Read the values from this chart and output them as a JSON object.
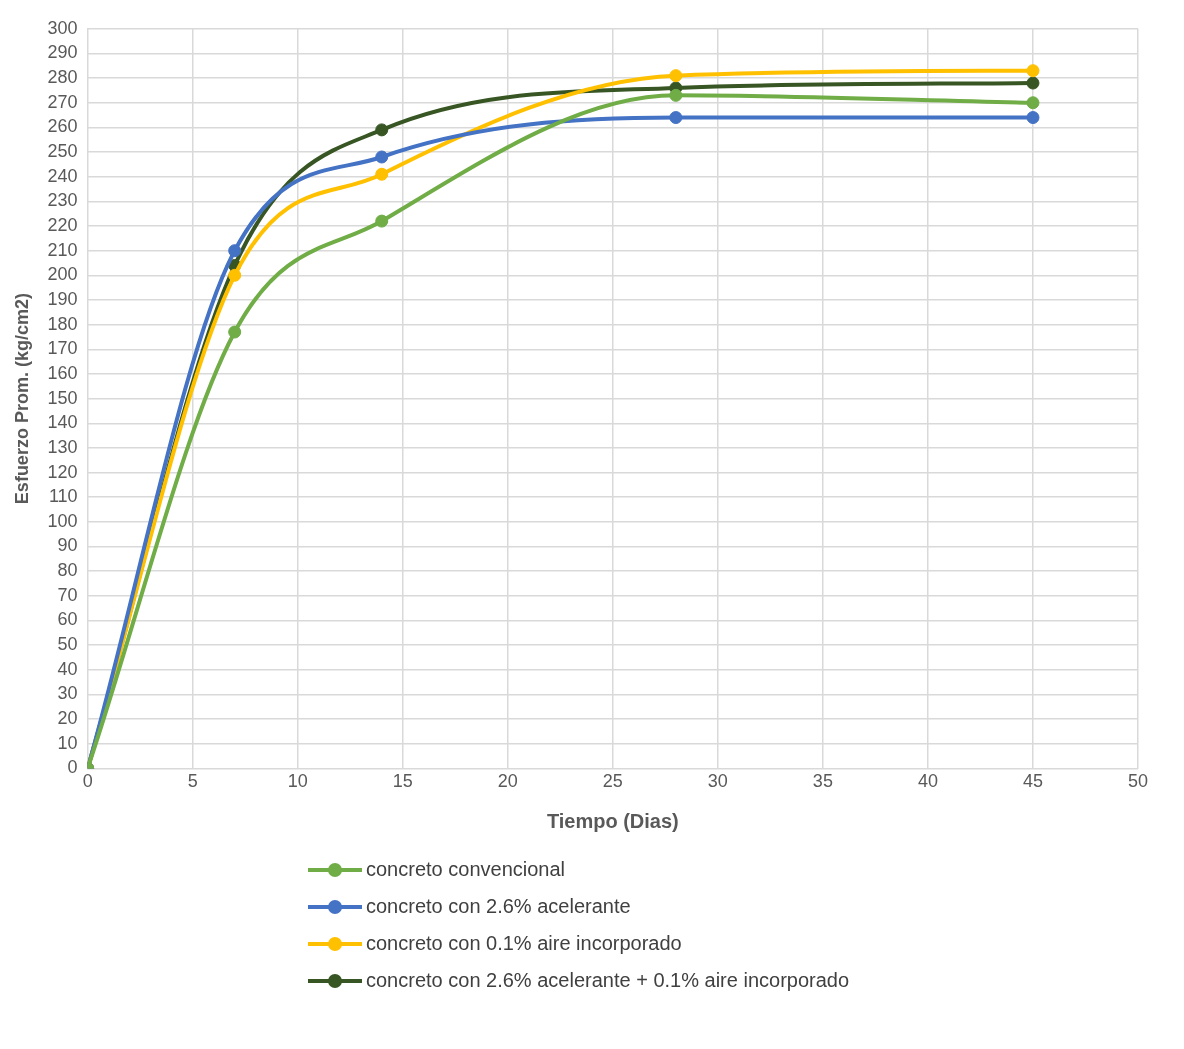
{
  "chart_data": {
    "type": "line",
    "xlabel": "Tiempo (Dias)",
    "ylabel": "Esfuerzo Prom. (kg/cm2)",
    "xlim": [
      0,
      50
    ],
    "xticks": [
      0,
      5,
      10,
      15,
      20,
      25,
      30,
      35,
      40,
      45,
      50
    ],
    "ylim": [
      0,
      300
    ],
    "yticks": [
      0,
      10,
      20,
      30,
      40,
      50,
      60,
      70,
      80,
      90,
      100,
      110,
      120,
      130,
      140,
      150,
      160,
      170,
      180,
      190,
      200,
      210,
      220,
      230,
      240,
      250,
      260,
      270,
      280,
      290,
      300
    ],
    "grid": true,
    "legend": "bottom",
    "marker": "circle",
    "line_style": "solid",
    "x": [
      0,
      7,
      14,
      28,
      45
    ],
    "series": [
      {
        "name": "concreto convencional",
        "color": "#70ad47",
        "values": [
          0,
          177,
          222,
          273,
          270
        ]
      },
      {
        "name": "concreto con 2.6% acelerante",
        "color": "#4472c4",
        "values": [
          0,
          210,
          248,
          264,
          264
        ]
      },
      {
        "name": "concreto con 0.1% aire incorporado",
        "color": "#ffc000",
        "values": [
          0,
          200,
          241,
          281,
          283
        ]
      },
      {
        "name": "concreto con 2.6% acelerante + 0.1% aire incorporado",
        "color": "#375623",
        "values": [
          0,
          204,
          259,
          276,
          278
        ]
      }
    ]
  }
}
